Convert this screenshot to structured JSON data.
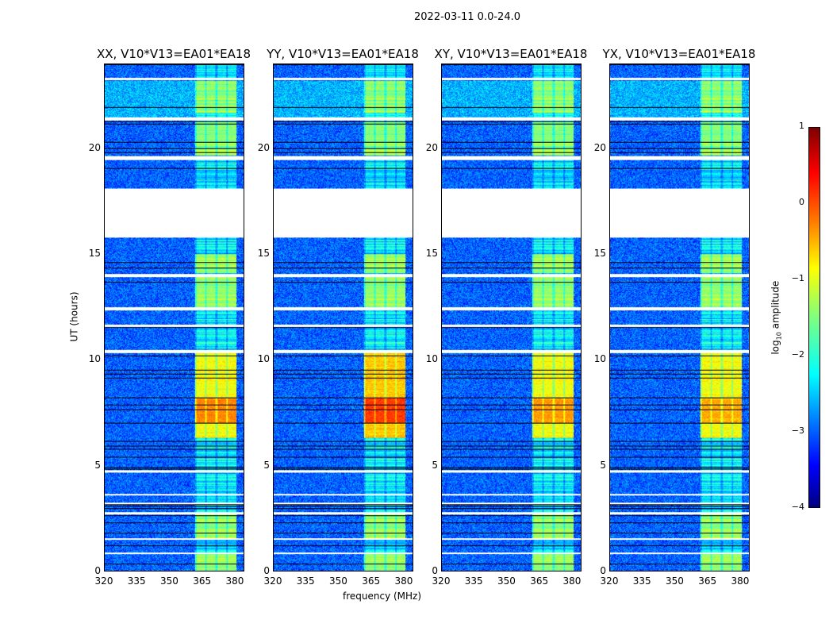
{
  "suptitle": "2022-03-11 0.0-24.0",
  "chart_data": {
    "type": "heatmap",
    "panels": [
      {
        "title": "XX, V10*V13=EA01*EA18",
        "peak": -0.9,
        "hot": -0.3
      },
      {
        "title": "YY, V10*V13=EA01*EA18",
        "peak": -0.6,
        "hot": 0.1
      },
      {
        "title": "XY, V10*V13=EA01*EA18",
        "peak": -0.9,
        "hot": -0.4
      },
      {
        "title": "YX, V10*V13=EA01*EA18",
        "peak": -0.9,
        "hot": -0.5
      }
    ],
    "xlabel": "frequency (MHz)",
    "ylabel": "UT (hours)",
    "xlim": [
      320,
      384.4
    ],
    "ylim": [
      0,
      24
    ],
    "xticks": [
      "320",
      "335",
      "350",
      "365",
      "380"
    ],
    "xtick_values": [
      320,
      335,
      350,
      365,
      380
    ],
    "yticks": [
      "0",
      "5",
      "10",
      "15",
      "20"
    ],
    "ytick_values": [
      0,
      5,
      10,
      15,
      20
    ],
    "colorbar": {
      "label": "log10 amplitude",
      "label_main": "log",
      "label_sub": "10",
      "label_rest": " amplitude",
      "range": [
        -4,
        1
      ],
      "ticks": [
        "1",
        "0",
        "−1",
        "−2",
        "−3",
        "−4"
      ],
      "tick_values": [
        1,
        0,
        -1,
        -2,
        -3,
        -4
      ],
      "colormap": "jet"
    },
    "background_level": -2.9,
    "rfi_band_mhz": [
      361.5,
      381
    ],
    "gaps_hours": [
      [
        15.8,
        18.1
      ],
      [
        23.25,
        23.35
      ],
      [
        21.35,
        21.5
      ],
      [
        19.45,
        19.65
      ],
      [
        13.9,
        14.05
      ],
      [
        12.35,
        12.5
      ],
      [
        11.55,
        11.65
      ],
      [
        10.3,
        10.45
      ],
      [
        4.65,
        4.75
      ],
      [
        3.55,
        3.62
      ],
      [
        3.15,
        3.22
      ],
      [
        2.65,
        2.78
      ],
      [
        1.45,
        1.55
      ],
      [
        0.78,
        0.85
      ]
    ],
    "active_periods_hours": [
      [
        6.3,
        10.3
      ],
      [
        19.7,
        21.3
      ],
      [
        21.7,
        23.2
      ],
      [
        12.5,
        13.9
      ],
      [
        14.1,
        15.0
      ],
      [
        1.5,
        2.7
      ],
      [
        0,
        0.8
      ]
    ]
  }
}
